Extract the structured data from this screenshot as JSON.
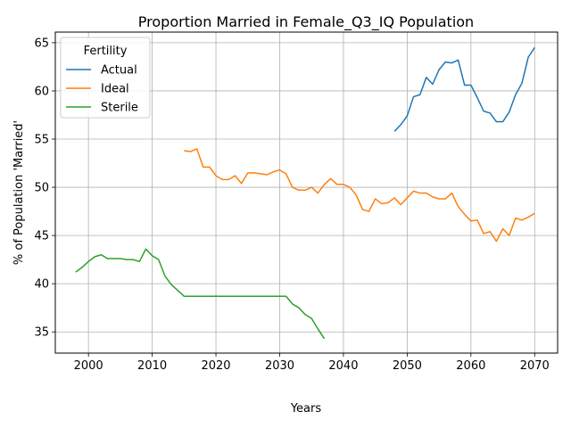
{
  "chart_data": {
    "type": "line",
    "title": "Proportion Married in Female_Q3_IQ Population",
    "xlabel": "Years",
    "ylabel": "% of Population 'Married'",
    "xlim": [
      1994.8,
      2073.6
    ],
    "ylim": [
      32.8,
      66.1
    ],
    "xticks": [
      2000,
      2010,
      2020,
      2030,
      2040,
      2050,
      2060,
      2070
    ],
    "yticks": [
      35,
      40,
      45,
      50,
      55,
      60,
      65
    ],
    "grid": true,
    "legend": {
      "title": "Fertility",
      "position": "top-left"
    },
    "series": [
      {
        "name": "Actual",
        "color": "#1f77b4",
        "x": [
          2048,
          2049,
          2050,
          2051,
          2052,
          2053,
          2054,
          2055,
          2056,
          2057,
          2058,
          2059,
          2060,
          2061,
          2062,
          2063,
          2064,
          2065,
          2066,
          2067,
          2068,
          2069,
          2070
        ],
        "y": [
          55.8,
          56.5,
          57.4,
          59.4,
          59.6,
          61.4,
          60.7,
          62.2,
          63.0,
          62.9,
          63.2,
          60.6,
          60.6,
          59.3,
          57.9,
          57.7,
          56.8,
          56.8,
          57.8,
          59.6,
          60.8,
          63.5,
          64.5
        ]
      },
      {
        "name": "Ideal",
        "color": "#ff7f0e",
        "x": [
          2015,
          2016,
          2017,
          2018,
          2019,
          2020,
          2021,
          2022,
          2023,
          2024,
          2025,
          2026,
          2027,
          2028,
          2029,
          2030,
          2031,
          2032,
          2033,
          2034,
          2035,
          2036,
          2037,
          2038,
          2039,
          2040,
          2041,
          2042,
          2043,
          2044,
          2045,
          2046,
          2047,
          2048,
          2049,
          2050,
          2051,
          2052,
          2053,
          2054,
          2055,
          2056,
          2057,
          2058,
          2059,
          2060,
          2061,
          2062,
          2063,
          2064,
          2065,
          2066,
          2067,
          2068,
          2069,
          2070
        ],
        "y": [
          53.8,
          53.7,
          54.0,
          52.1,
          52.1,
          51.2,
          50.8,
          50.8,
          51.2,
          50.4,
          51.5,
          51.5,
          51.4,
          51.3,
          51.6,
          51.8,
          51.4,
          50.0,
          49.7,
          49.7,
          50.0,
          49.4,
          50.3,
          50.9,
          50.3,
          50.3,
          50.0,
          49.2,
          47.7,
          47.5,
          48.8,
          48.3,
          48.4,
          48.9,
          48.2,
          48.9,
          49.6,
          49.4,
          49.4,
          49.0,
          48.8,
          48.8,
          49.4,
          48.0,
          47.2,
          46.5,
          46.6,
          45.2,
          45.4,
          44.4,
          45.7,
          45.0,
          46.8,
          46.6,
          46.9,
          47.3
        ]
      },
      {
        "name": "Sterile",
        "color": "#2ca02c",
        "x": [
          1998,
          1999,
          2000,
          2001,
          2002,
          2003,
          2004,
          2005,
          2006,
          2007,
          2008,
          2009,
          2010,
          2011,
          2012,
          2013,
          2014,
          2015,
          2016,
          2017,
          2018,
          2019,
          2020,
          2021,
          2022,
          2023,
          2024,
          2025,
          2026,
          2027,
          2028,
          2029,
          2030,
          2031,
          2032,
          2033,
          2034,
          2035,
          2036,
          2037
        ],
        "y": [
          41.2,
          41.7,
          42.3,
          42.8,
          43.0,
          42.6,
          42.6,
          42.6,
          42.5,
          42.5,
          42.3,
          43.6,
          42.9,
          42.5,
          40.8,
          39.9,
          39.3,
          38.7,
          38.7,
          38.7,
          38.7,
          38.7,
          38.7,
          38.7,
          38.7,
          38.7,
          38.7,
          38.7,
          38.7,
          38.7,
          38.7,
          38.7,
          38.7,
          38.7,
          37.9,
          37.5,
          36.8,
          36.4,
          35.3,
          34.3
        ]
      }
    ]
  }
}
